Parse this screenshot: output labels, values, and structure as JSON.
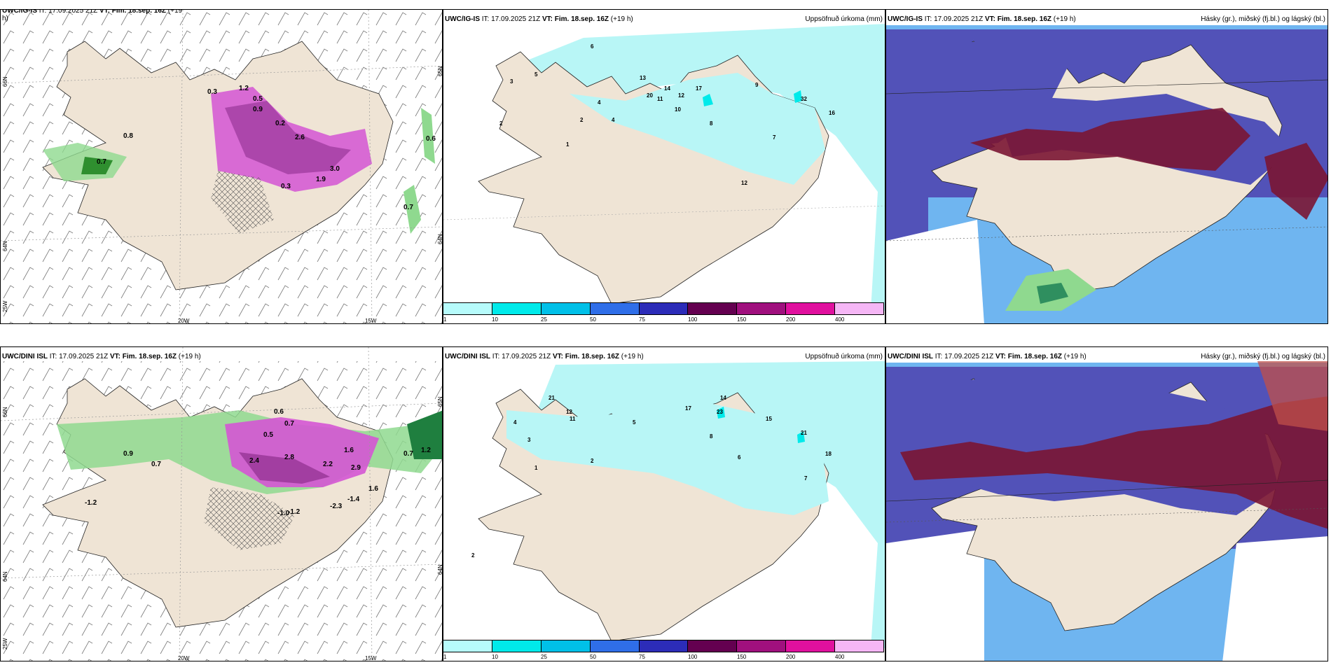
{
  "rows": [
    {
      "panels": [
        {
          "source": "UWC/IG-IS",
          "it": "IT: 17.09.2025 21Z",
          "vt": "VT: Fim. 18.sep. 16Z",
          "lead": "(+19",
          "lead2": "h)",
          "right": ""
        },
        {
          "source": "UWC/IG-IS",
          "it": "IT: 17.09.2025 21Z",
          "vt": "VT: Fim. 18.sep. 16Z",
          "lead": "(+19 h)",
          "right": "Uppsöfnuð úrkoma (mm)"
        },
        {
          "source": "UWC/IG-IS",
          "it": "IT: 17.09.2025 21Z",
          "vt": "VT: Fim. 18.sep. 16Z",
          "lead": "(+19 h)",
          "right": "Hásky (gr.), miðský (fj.bl.) og lágský (bl.)"
        }
      ],
      "wind_values": [
        "0.6",
        "0.7",
        "0.8",
        "0.7",
        "1.2",
        "0.5",
        "0.2",
        "0.9",
        "2.6",
        "3.0",
        "1.9",
        "0.3",
        "0.3"
      ],
      "precip_values": [
        "6",
        "3",
        "5",
        "4",
        "2",
        "17",
        "13",
        "20",
        "12",
        "9",
        "14",
        "11",
        "10",
        "32",
        "16",
        "8",
        "7",
        "1",
        "12",
        "2",
        "4"
      ]
    },
    {
      "panels": [
        {
          "source": "UWC/DINI ISL",
          "it": "IT: 17.09.2025 21Z",
          "vt": "VT: Fim. 18.sep. 16Z",
          "lead": "(+19 h)",
          "right": ""
        },
        {
          "source": "UWC/DINI ISL",
          "it": "IT: 17.09.2025 21Z",
          "vt": "VT: Fim. 18.sep. 16Z",
          "lead": "(+19 h)",
          "right": "Uppsöfnuð úrkoma (mm)"
        },
        {
          "source": "UWC/DINI ISL",
          "it": "IT: 17.09.2025 21Z",
          "vt": "VT: Fim. 18.sep. 16Z",
          "lead": "(+19 h)",
          "right": "Hásky (gr.), miðský (fj.bl.) og lágský (bl.)"
        }
      ],
      "wind_values": [
        "0.6",
        "0.7",
        "0.5",
        "0.9",
        "0.7",
        "2.4",
        "2.8",
        "2.2",
        "1.6",
        "2.9",
        "-1.2",
        "-1.0",
        "-1.2",
        "-2.3",
        "-1.4",
        "1.6",
        "0.7",
        "1.2"
      ],
      "precip_values": [
        "21",
        "12",
        "11",
        "17",
        "23",
        "14",
        "15",
        "21",
        "18",
        "5",
        "4",
        "2",
        "3",
        "6",
        "8",
        "1",
        "7",
        "2"
      ]
    }
  ],
  "grid_labels": {
    "lat66": "66N",
    "lat64": "64N",
    "lon25": "25W",
    "lon20": "20W",
    "lon15": "15W",
    "lat65": "65N"
  },
  "colorbar": {
    "ticks": [
      "1",
      "10",
      "25",
      "50",
      "75",
      "100",
      "150",
      "200",
      "400"
    ],
    "colors": [
      "#b6fbfb",
      "#00eaea",
      "#00c0e8",
      "#2f6ee8",
      "#2c2cb8",
      "#640050",
      "#a0107e",
      "#e0109e",
      "#f5b6f5"
    ]
  },
  "colors": {
    "land": "#efe4d5",
    "cloud_high": "#7a1533",
    "cloud_mid": "#5252b8",
    "cloud_low": "#6fb5f0",
    "precip": "#b8f6f6",
    "magenta": "#d455d4",
    "green": "#8fd98f"
  }
}
